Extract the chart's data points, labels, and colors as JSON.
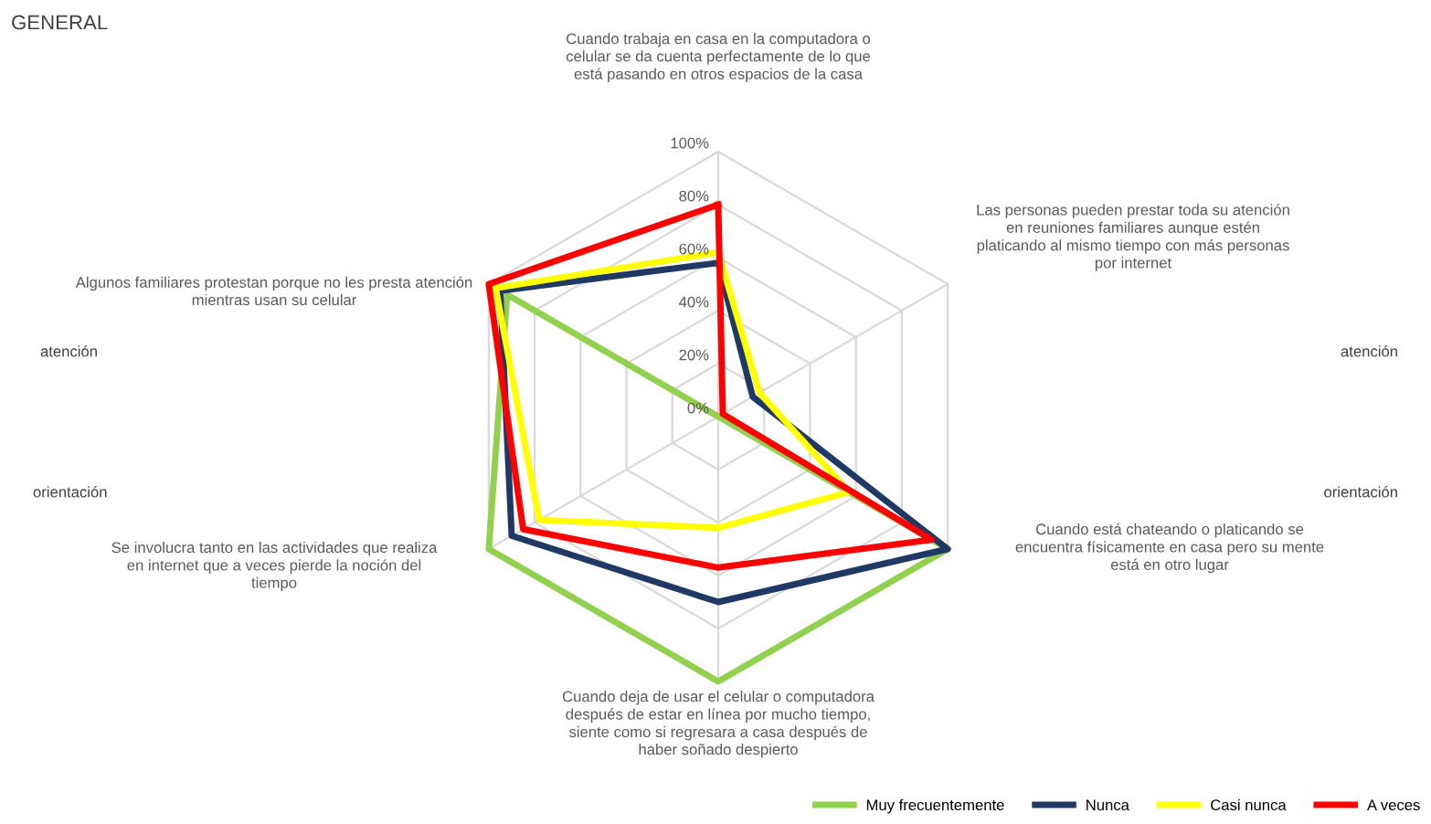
{
  "chart_data": {
    "type": "radar",
    "title": "GENERAL",
    "categories": [
      "Cuando trabaja en casa en la computadora o\ncelular se da cuenta perfectamente de lo que\nestá pasando en otros espacios de la casa",
      "Las personas pueden prestar toda su atención\nen reuniones familiares aunque estén\nplaticando al mismo tiempo con más personas\npor internet",
      "Cuando está chateando o platicando se\nencuentra físicamente en casa pero su mente\nestá en otro lugar",
      "Cuando deja de usar el celular o computadora\ndespués de estar en línea por mucho tiempo,\nsiente como si regresara a casa después de\nhaber soñado despierto",
      "Se involucra tanto en las actividades que realiza\nen internet que a veces pierde la noción del\ntiempo",
      "Algunos familiares protestan porque no les presta atención\nmientras usan su celular"
    ],
    "series": [
      {
        "name": "Muy frecuentemente",
        "color": "#92d050",
        "values": [
          0,
          0,
          100,
          100,
          100,
          92
        ]
      },
      {
        "name": "Nunca",
        "color": "#1f3864",
        "values": [
          58,
          15,
          100,
          70,
          90,
          95
        ]
      },
      {
        "name": "Casi nunca",
        "color": "#ffff00",
        "values": [
          62,
          18,
          57,
          42,
          78,
          97
        ]
      },
      {
        "name": "A veces",
        "color": "#ff0000",
        "values": [
          80,
          2,
          93,
          57,
          85,
          100
        ]
      }
    ],
    "ylim": [
      0,
      100
    ],
    "yticks": [
      {
        "value": 0,
        "label": "0%"
      },
      {
        "value": 20,
        "label": "20%"
      },
      {
        "value": 40,
        "label": "40%"
      },
      {
        "value": 60,
        "label": "60%"
      },
      {
        "value": 80,
        "label": "80%"
      },
      {
        "value": 100,
        "label": "100%"
      }
    ],
    "grid": true,
    "legend": "bottom right",
    "annotations": [
      "atención",
      "orientación",
      "atención",
      "orientación"
    ]
  }
}
